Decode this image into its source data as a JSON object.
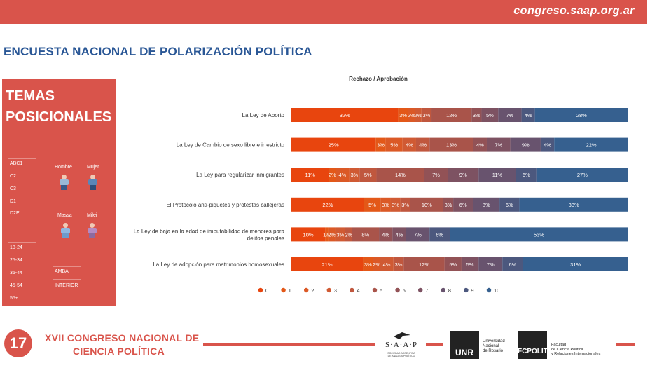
{
  "header": {
    "site_url": "congreso.saap.org.ar",
    "page_title": "ENCUESTA NACIONAL DE POLARIZACIÓN POLÍTICA"
  },
  "left_panel": {
    "heading_line1": "TEMAS",
    "heading_line2": "POSICIONALES",
    "segments_ses": [
      "ABC1",
      "C2",
      "C3",
      "D1",
      "D2E"
    ],
    "segments_age": [
      "18-24",
      "25-34",
      "35-44",
      "45-54",
      "55+"
    ],
    "segments_region": [
      "AMBA",
      "INTERIOR"
    ],
    "gender_labels": [
      "Hombre",
      "Mujer"
    ],
    "candidate_labels": [
      "Massa",
      "Milei"
    ]
  },
  "chart_data": {
    "type": "bar",
    "orientation": "horizontal",
    "stacked": true,
    "title": "Rechazo / Aprobación",
    "categories": [
      "La Ley de Aborto",
      "La Ley de Cambio de sexo libre e irrestricto",
      "La Ley para regularizar inmigrantes",
      "El Protocolo anti-piquetes y protestas callejeras",
      "La Ley de baja en la edad de imputabilidad de menores para delitos penales",
      "La Ley de adopción para matrimonios homosexuales"
    ],
    "series": [
      {
        "name": "0",
        "color": "#e8450e",
        "values": [
          32,
          25,
          11,
          22,
          10,
          21
        ]
      },
      {
        "name": "1",
        "color": "#e35818",
        "values": [
          3,
          3,
          2,
          5,
          1,
          3
        ]
      },
      {
        "name": "2",
        "color": "#db5926",
        "values": [
          2,
          5,
          4,
          3,
          2,
          2
        ]
      },
      {
        "name": "3",
        "color": "#d05a33",
        "values": [
          2,
          4,
          3,
          3,
          3,
          4
        ]
      },
      {
        "name": "4",
        "color": "#c0573e",
        "values": [
          3,
          4,
          5,
          3,
          2,
          3
        ]
      },
      {
        "name": "5",
        "color": "#a9544a",
        "values": [
          12,
          13,
          14,
          10,
          8,
          12
        ]
      },
      {
        "name": "6",
        "color": "#925256",
        "values": [
          3,
          4,
          7,
          3,
          4,
          5
        ]
      },
      {
        "name": "7",
        "color": "#7d5262",
        "values": [
          5,
          7,
          9,
          6,
          4,
          5
        ]
      },
      {
        "name": "8",
        "color": "#68536e",
        "values": [
          7,
          9,
          11,
          8,
          7,
          7
        ]
      },
      {
        "name": "9",
        "color": "#4c587e",
        "values": [
          4,
          4,
          6,
          6,
          6,
          6
        ]
      },
      {
        "name": "10",
        "color": "#36608f",
        "values": [
          28,
          22,
          27,
          33,
          53,
          31
        ]
      }
    ],
    "legend": [
      "0",
      "1",
      "2",
      "3",
      "4",
      "5",
      "6",
      "7",
      "8",
      "9",
      "10"
    ],
    "legend_position": "bottom",
    "grid": false
  },
  "footer": {
    "logo_number": "17",
    "congreso_line1": "XVII CONGRESO NACIONAL DE",
    "congreso_line2": "CIENCIA POLÍTICA",
    "saap_name": "S·A·A·P",
    "saap_sub1": "SOCIEDAD ARGENTINA",
    "saap_sub2": "DE ANÁLISIS POLÍTICO",
    "unr_abbr": "UNR",
    "unr_line1": "Universidad",
    "unr_line2": "Nacional",
    "unr_line3": "de Rosario",
    "fcp_abbr": "FCPOLIT",
    "fcp_line1": "Facultad",
    "fcp_line2": "de Ciencia Política",
    "fcp_line3": "y Relaciones Internacionales"
  }
}
